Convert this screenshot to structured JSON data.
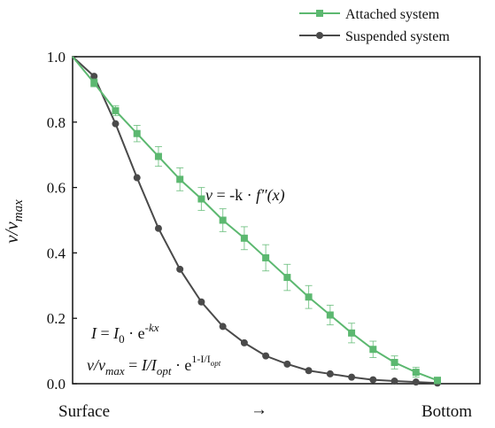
{
  "chart_data": {
    "type": "line",
    "ylabel_base": "v/v",
    "ylabel_sub": "max",
    "ylim": [
      0.0,
      1.0
    ],
    "yticks": [
      "0.0",
      "0.2",
      "0.4",
      "0.6",
      "0.8",
      "1.0"
    ],
    "xlabel_left": "Surface",
    "xlabel_arrow": "→",
    "xlabel_right": "Bottom",
    "legend_position": "top-right",
    "x": [
      0,
      1,
      2,
      3,
      4,
      5,
      6,
      7,
      8,
      9,
      10,
      11,
      12,
      13,
      14,
      15,
      16,
      17
    ],
    "series": [
      {
        "name": "Attached system",
        "color": "#5cb870",
        "marker": "square",
        "values": [
          1.0,
          0.92,
          0.835,
          0.765,
          0.695,
          0.625,
          0.565,
          0.5,
          0.445,
          0.385,
          0.325,
          0.265,
          0.21,
          0.155,
          0.105,
          0.065,
          0.035,
          0.01
        ],
        "errors": [
          0.0,
          0.012,
          0.015,
          0.025,
          0.03,
          0.035,
          0.035,
          0.035,
          0.035,
          0.04,
          0.04,
          0.035,
          0.03,
          0.03,
          0.025,
          0.02,
          0.015,
          0.01
        ]
      },
      {
        "name": "Suspended system",
        "color": "#4a4a4a",
        "marker": "circle",
        "values": [
          1.0,
          0.94,
          0.795,
          0.63,
          0.475,
          0.35,
          0.25,
          0.175,
          0.125,
          0.085,
          0.06,
          0.04,
          0.03,
          0.02,
          0.012,
          0.008,
          0.005,
          0.002
        ]
      }
    ],
    "annotations": {
      "eq_attached": {
        "lhs": "v",
        "eq": " = -k · ",
        "fn": "f″(x)"
      },
      "eq_light": {
        "lhs": "I",
        "eq": " = ",
        "i0": "I",
        "i0_sub": "0",
        "dot": " · e",
        "exp": "-kx"
      },
      "eq_suspended": {
        "lhs": "v/v",
        "lhs_sub": "max",
        "eq": " = ",
        "r1": "I/I",
        "r1_sub": "opt",
        "dot": " · e",
        "exp": "1-I/I",
        "exp_sub": "opt"
      }
    }
  }
}
